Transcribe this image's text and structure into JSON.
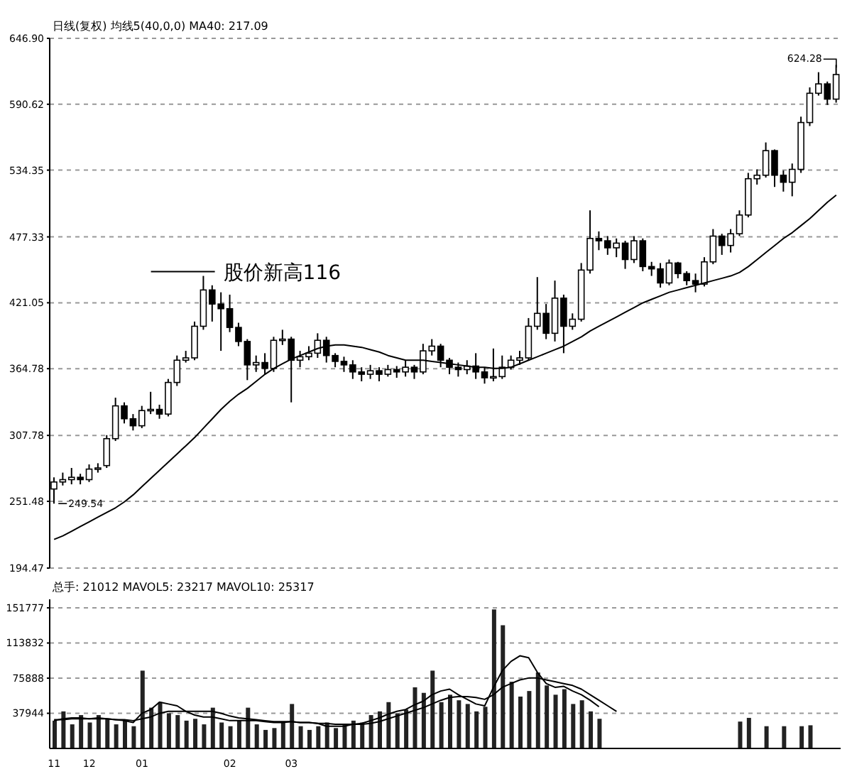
{
  "chart_data": [
    {
      "type": "candlestick",
      "title": "日线(复权)  均线5(40,0,0) MA40: 217.09",
      "color": "#000000",
      "annotations": [
        "股价新高116",
        "249.54",
        "624.28"
      ],
      "categories": [
        null,
        null,
        null,
        null,
        null,
        null,
        null,
        null,
        null,
        null,
        null,
        null,
        null,
        null,
        null,
        null,
        null,
        null,
        null,
        null,
        null,
        null,
        null,
        null,
        null,
        null,
        null,
        null,
        null,
        null,
        null,
        null,
        null,
        null,
        null,
        null,
        null,
        null,
        null,
        null,
        null,
        null,
        null,
        null,
        null,
        null,
        null,
        null,
        null,
        null,
        null,
        null,
        null,
        null,
        null,
        null,
        null,
        null,
        null,
        null,
        null,
        null,
        null,
        null,
        null,
        null,
        null,
        null,
        null,
        null,
        null,
        null,
        null,
        null,
        null,
        null,
        null,
        null,
        null,
        null,
        null,
        null,
        null,
        null,
        null,
        null,
        null,
        null,
        null,
        null
      ],
      "ohlc": [
        [
          262,
          272,
          249.54,
          268
        ],
        [
          268,
          276,
          265,
          270
        ],
        [
          270,
          280,
          266,
          272
        ],
        [
          272,
          275,
          266,
          270
        ],
        [
          270,
          283,
          268,
          279
        ],
        [
          279,
          284,
          276,
          280
        ],
        [
          282,
          308,
          280,
          305
        ],
        [
          305,
          340,
          303,
          333
        ],
        [
          333,
          336,
          318,
          322
        ],
        [
          322,
          326,
          312,
          316
        ],
        [
          316,
          333,
          314,
          329
        ],
        [
          329,
          345,
          326,
          330
        ],
        [
          330,
          334,
          322,
          326
        ],
        [
          326,
          356,
          324,
          353
        ],
        [
          353,
          376,
          350,
          372
        ],
        [
          372,
          380,
          370,
          374
        ],
        [
          374,
          405,
          372,
          401
        ],
        [
          401,
          444,
          398,
          432
        ],
        [
          432,
          436,
          405,
          420
        ],
        [
          420,
          430,
          380,
          416
        ],
        [
          416,
          428,
          396,
          400
        ],
        [
          400,
          404,
          384,
          388
        ],
        [
          388,
          390,
          355,
          368
        ],
        [
          368,
          376,
          362,
          370
        ],
        [
          370,
          378,
          360,
          365
        ],
        [
          365,
          392,
          362,
          389
        ],
        [
          389,
          398,
          385,
          390
        ],
        [
          390,
          392,
          336,
          372
        ],
        [
          372,
          380,
          366,
          375
        ],
        [
          375,
          384,
          372,
          378
        ],
        [
          378,
          395,
          374,
          389
        ],
        [
          389,
          392,
          370,
          376
        ],
        [
          376,
          378,
          366,
          371
        ],
        [
          371,
          375,
          362,
          368
        ],
        [
          368,
          372,
          356,
          362
        ],
        [
          362,
          366,
          354,
          360
        ],
        [
          360,
          368,
          356,
          363
        ],
        [
          363,
          366,
          354,
          360
        ],
        [
          360,
          368,
          358,
          364
        ],
        [
          364,
          367,
          357,
          362
        ],
        [
          362,
          372,
          358,
          366
        ],
        [
          366,
          368,
          356,
          362
        ],
        [
          362,
          386,
          360,
          380
        ],
        [
          380,
          390,
          376,
          384
        ],
        [
          384,
          386,
          366,
          372
        ],
        [
          372,
          374,
          360,
          366
        ],
        [
          366,
          370,
          358,
          364
        ],
        [
          364,
          372,
          360,
          367
        ],
        [
          367,
          378,
          356,
          362
        ],
        [
          362,
          366,
          352,
          357
        ],
        [
          357,
          382,
          354,
          358
        ],
        [
          358,
          376,
          356,
          366
        ],
        [
          366,
          376,
          364,
          372
        ],
        [
          372,
          380,
          368,
          374
        ],
        [
          374,
          408,
          372,
          401
        ],
        [
          401,
          443,
          398,
          412
        ],
        [
          412,
          420,
          390,
          395
        ],
        [
          395,
          440,
          388,
          425
        ],
        [
          425,
          428,
          378,
          401
        ],
        [
          401,
          412,
          398,
          407
        ],
        [
          407,
          455,
          405,
          449
        ],
        [
          449,
          500,
          446,
          476
        ],
        [
          476,
          482,
          466,
          474
        ],
        [
          474,
          478,
          462,
          468
        ],
        [
          468,
          476,
          460,
          472
        ],
        [
          472,
          474,
          450,
          458
        ],
        [
          458,
          478,
          455,
          474
        ],
        [
          474,
          476,
          448,
          452
        ],
        [
          452,
          456,
          444,
          450
        ],
        [
          450,
          455,
          434,
          438
        ],
        [
          438,
          458,
          436,
          455
        ],
        [
          455,
          456,
          442,
          446
        ],
        [
          446,
          448,
          436,
          440
        ],
        [
          440,
          446,
          430,
          437
        ],
        [
          437,
          460,
          435,
          456
        ],
        [
          456,
          484,
          454,
          478
        ],
        [
          478,
          480,
          462,
          470
        ],
        [
          470,
          484,
          464,
          480
        ],
        [
          480,
          500,
          478,
          496
        ],
        [
          496,
          532,
          494,
          527
        ],
        [
          527,
          535,
          522,
          530
        ],
        [
          530,
          558,
          528,
          551
        ],
        [
          551,
          552,
          520,
          530
        ],
        [
          530,
          534,
          516,
          524
        ],
        [
          524,
          540,
          512,
          535
        ],
        [
          535,
          580,
          532,
          575
        ],
        [
          575,
          605,
          572,
          600
        ],
        [
          600,
          618,
          598,
          608
        ],
        [
          608,
          610,
          590,
          595
        ],
        [
          595,
          624.28,
          592,
          616
        ]
      ],
      "series": [
        {
          "type": "line",
          "color": "#000000",
          "values": [
            219,
            222,
            226,
            230,
            234,
            238,
            242,
            246,
            251,
            257,
            264,
            271,
            278,
            285,
            292,
            299,
            306,
            314,
            322,
            330,
            337,
            343,
            348,
            354,
            360,
            365,
            369,
            373,
            376,
            379,
            382,
            384,
            385,
            385,
            384,
            383,
            381,
            379,
            376,
            374,
            372,
            372,
            372,
            371,
            370,
            369,
            368,
            367,
            366,
            366,
            365,
            365,
            366,
            369,
            372,
            375,
            378,
            381,
            384,
            388,
            392,
            397,
            401,
            405,
            409,
            413,
            417,
            421,
            424,
            427,
            430,
            432,
            434,
            436,
            438,
            440,
            442,
            444,
            447,
            452,
            458,
            464,
            470,
            476,
            481,
            487,
            493,
            500,
            507,
            513
          ]
        }
      ],
      "ylim": [
        194.47,
        646.9
      ],
      "yticks": [
        194.47,
        251.48,
        307.78,
        364.78,
        421.05,
        477.33,
        534.35,
        590.62,
        {
          "value": 646.9,
          "label": "646.90"
        }
      ],
      "grid": "y",
      "tick_labels": "y"
    },
    {
      "type": "bar",
      "title": "总手: 21012 MAVOL5: 23217 MAVOL10: 25317",
      "categories": [
        "11",
        null,
        null,
        null,
        "12",
        null,
        null,
        null,
        null,
        null,
        "01",
        null,
        null,
        null,
        null,
        null,
        null,
        null,
        null,
        null,
        "02",
        null,
        null,
        null,
        null,
        null,
        null,
        "03",
        null,
        null,
        null,
        null,
        null,
        null,
        null,
        null,
        null,
        null,
        null,
        null,
        null,
        null,
        null,
        null,
        null,
        null,
        null,
        null,
        null,
        null,
        null,
        null,
        null,
        null,
        null,
        null,
        null,
        null,
        null,
        null,
        null,
        null,
        null,
        null,
        null,
        null,
        null,
        null,
        null,
        null,
        null,
        null,
        null,
        null,
        null,
        null,
        null,
        null,
        null,
        null,
        null,
        null,
        null,
        null,
        null,
        null,
        null,
        null,
        null,
        null
      ],
      "series": [
        {
          "type": "bar",
          "color": "#222222",
          "values": [
            30000,
            40000,
            26000,
            36000,
            28000,
            36000,
            32000,
            26000,
            30000,
            24000,
            84000,
            44000,
            50000,
            38000,
            36000,
            30000,
            32000,
            26000,
            44000,
            28000,
            24000,
            30000,
            44000,
            26000,
            20000,
            22000,
            28000,
            48000,
            24000,
            20000,
            24000,
            28000,
            22000,
            26000,
            30000,
            28000,
            36000,
            40000,
            50000,
            38000,
            42000,
            66000,
            60000,
            84000,
            50000,
            58000,
            52000,
            48000,
            40000,
            45000,
            150000,
            133000,
            72000,
            56000,
            62000,
            82000,
            68000,
            58000,
            64000,
            48000,
            52000,
            40000,
            32000,
            null,
            null,
            null,
            null,
            null,
            null,
            null,
            null,
            null,
            null,
            null,
            null,
            null,
            null,
            null,
            29000,
            33000,
            null,
            24000,
            null,
            24000,
            null,
            24000,
            25000,
            null,
            null,
            null
          ]
        },
        {
          "type": "line",
          "color": "#000000",
          "values": [
            30000,
            32000,
            33000,
            33000,
            32000,
            33000,
            32000,
            31000,
            30000,
            28000,
            38000,
            42000,
            50000,
            48000,
            46000,
            40000,
            36000,
            34000,
            34000,
            32000,
            30000,
            30000,
            30000,
            30000,
            29000,
            28000,
            28000,
            29000,
            28000,
            28000,
            27000,
            24000,
            24000,
            24000,
            26000,
            27000,
            30000,
            33000,
            37000,
            40000,
            42000,
            47000,
            51000,
            58000,
            62000,
            64000,
            58000,
            53000,
            48000,
            46000,
            66000,
            84000,
            94000,
            100000,
            98000,
            82000,
            70000,
            66000,
            67000,
            62000,
            58000,
            52000,
            45000,
            null,
            null,
            null,
            null,
            null,
            null,
            null,
            null,
            null,
            null,
            null,
            null,
            null,
            null,
            null,
            null,
            null,
            null,
            null,
            null,
            null,
            null,
            null,
            null,
            null,
            null,
            null
          ]
        },
        {
          "type": "line",
          "color": "#000000",
          "values": [
            31000,
            31000,
            32000,
            32000,
            32000,
            32000,
            32000,
            31000,
            31000,
            30000,
            32000,
            34000,
            38000,
            40000,
            40000,
            40000,
            40000,
            40000,
            40000,
            38000,
            35000,
            33000,
            32000,
            31000,
            30000,
            29000,
            29000,
            29000,
            28000,
            28000,
            27000,
            27000,
            26000,
            26000,
            26000,
            26000,
            27000,
            29000,
            32000,
            35000,
            38000,
            41000,
            44000,
            48000,
            52000,
            55000,
            56000,
            56000,
            55000,
            53000,
            58000,
            66000,
            70000,
            74000,
            76000,
            76000,
            74000,
            72000,
            70000,
            68000,
            64000,
            58000,
            52000,
            46000,
            40000,
            null,
            null,
            null,
            null,
            null,
            null,
            null,
            null,
            null,
            null,
            null,
            null,
            null,
            null,
            null,
            null,
            null,
            null,
            null,
            null,
            null,
            null,
            null,
            null,
            null
          ]
        }
      ],
      "ylim": [
        0,
        161000
      ],
      "yticks": [
        37944,
        75888,
        113832,
        151777
      ],
      "grid": "y"
    }
  ]
}
